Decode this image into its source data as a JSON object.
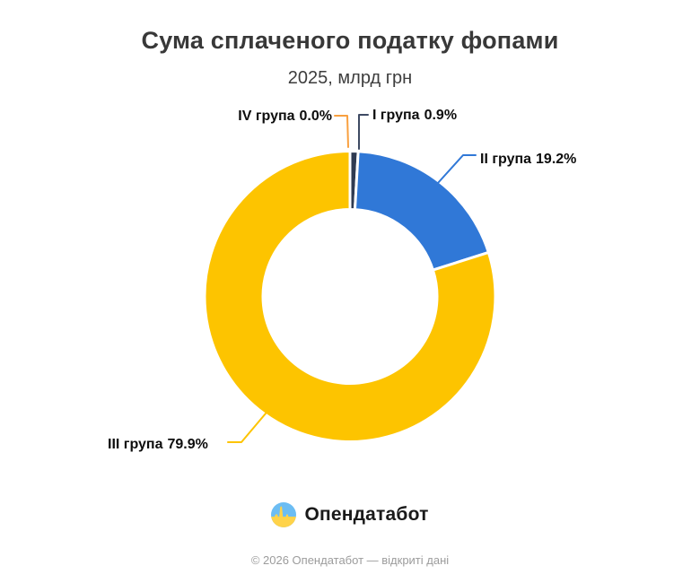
{
  "chart_data": {
    "type": "pie",
    "subtype": "donut",
    "title": "Сума сплаченого податку фопами",
    "subtitle": "2025, млрд грн",
    "unit": "млрд грн",
    "year": "2025",
    "legend_position": "callout-labels",
    "background": "#ffffff",
    "slices": [
      {
        "id": "iv",
        "label": "IV група",
        "value_pct": 0.0,
        "pct_label": "0.0%",
        "color": "#F9A03F"
      },
      {
        "id": "i",
        "label": "I група",
        "value_pct": 0.9,
        "pct_label": "0.9%",
        "color": "#2F3B52"
      },
      {
        "id": "ii",
        "label": "II група",
        "value_pct": 19.2,
        "pct_label": "19.2%",
        "color": "#3078D7"
      },
      {
        "id": "iii",
        "label": "III група",
        "value_pct": 79.9,
        "pct_label": "79.9%",
        "color": "#FDC400"
      }
    ]
  },
  "logo": {
    "text": "Опендатабот",
    "icon": "opendatabot-logo-icon",
    "icon_colors": {
      "circle_top_blue": "#6CBDF3",
      "circle_bottom_yellow": "#FFD34A"
    }
  },
  "footer": {
    "copyright": "© 2026 Опендатабот — відкриті дані"
  }
}
